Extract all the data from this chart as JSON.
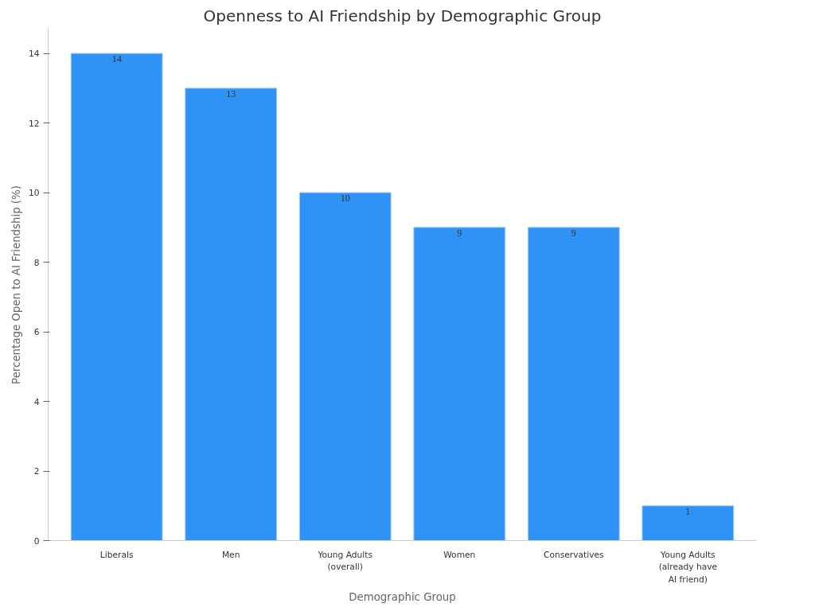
{
  "chart_data": {
    "type": "bar",
    "title": "Openness to AI Friendship by Demographic Group",
    "xlabel": "Demographic Group",
    "ylabel": "Percentage Open to AI Friendship (%)",
    "categories": [
      "Liberals",
      "Men",
      "Young Adults\n(overall)",
      "Women",
      "Conservatives",
      "Young Adults\n(already have\nAI friend)"
    ],
    "values": [
      14,
      13,
      10,
      9,
      9,
      1
    ],
    "color": "#2e93f5",
    "ylim": [
      0,
      14.7
    ],
    "yticks": [
      0,
      2,
      4,
      6,
      8,
      10,
      12,
      14
    ],
    "grid": false,
    "data_labels": true
  }
}
